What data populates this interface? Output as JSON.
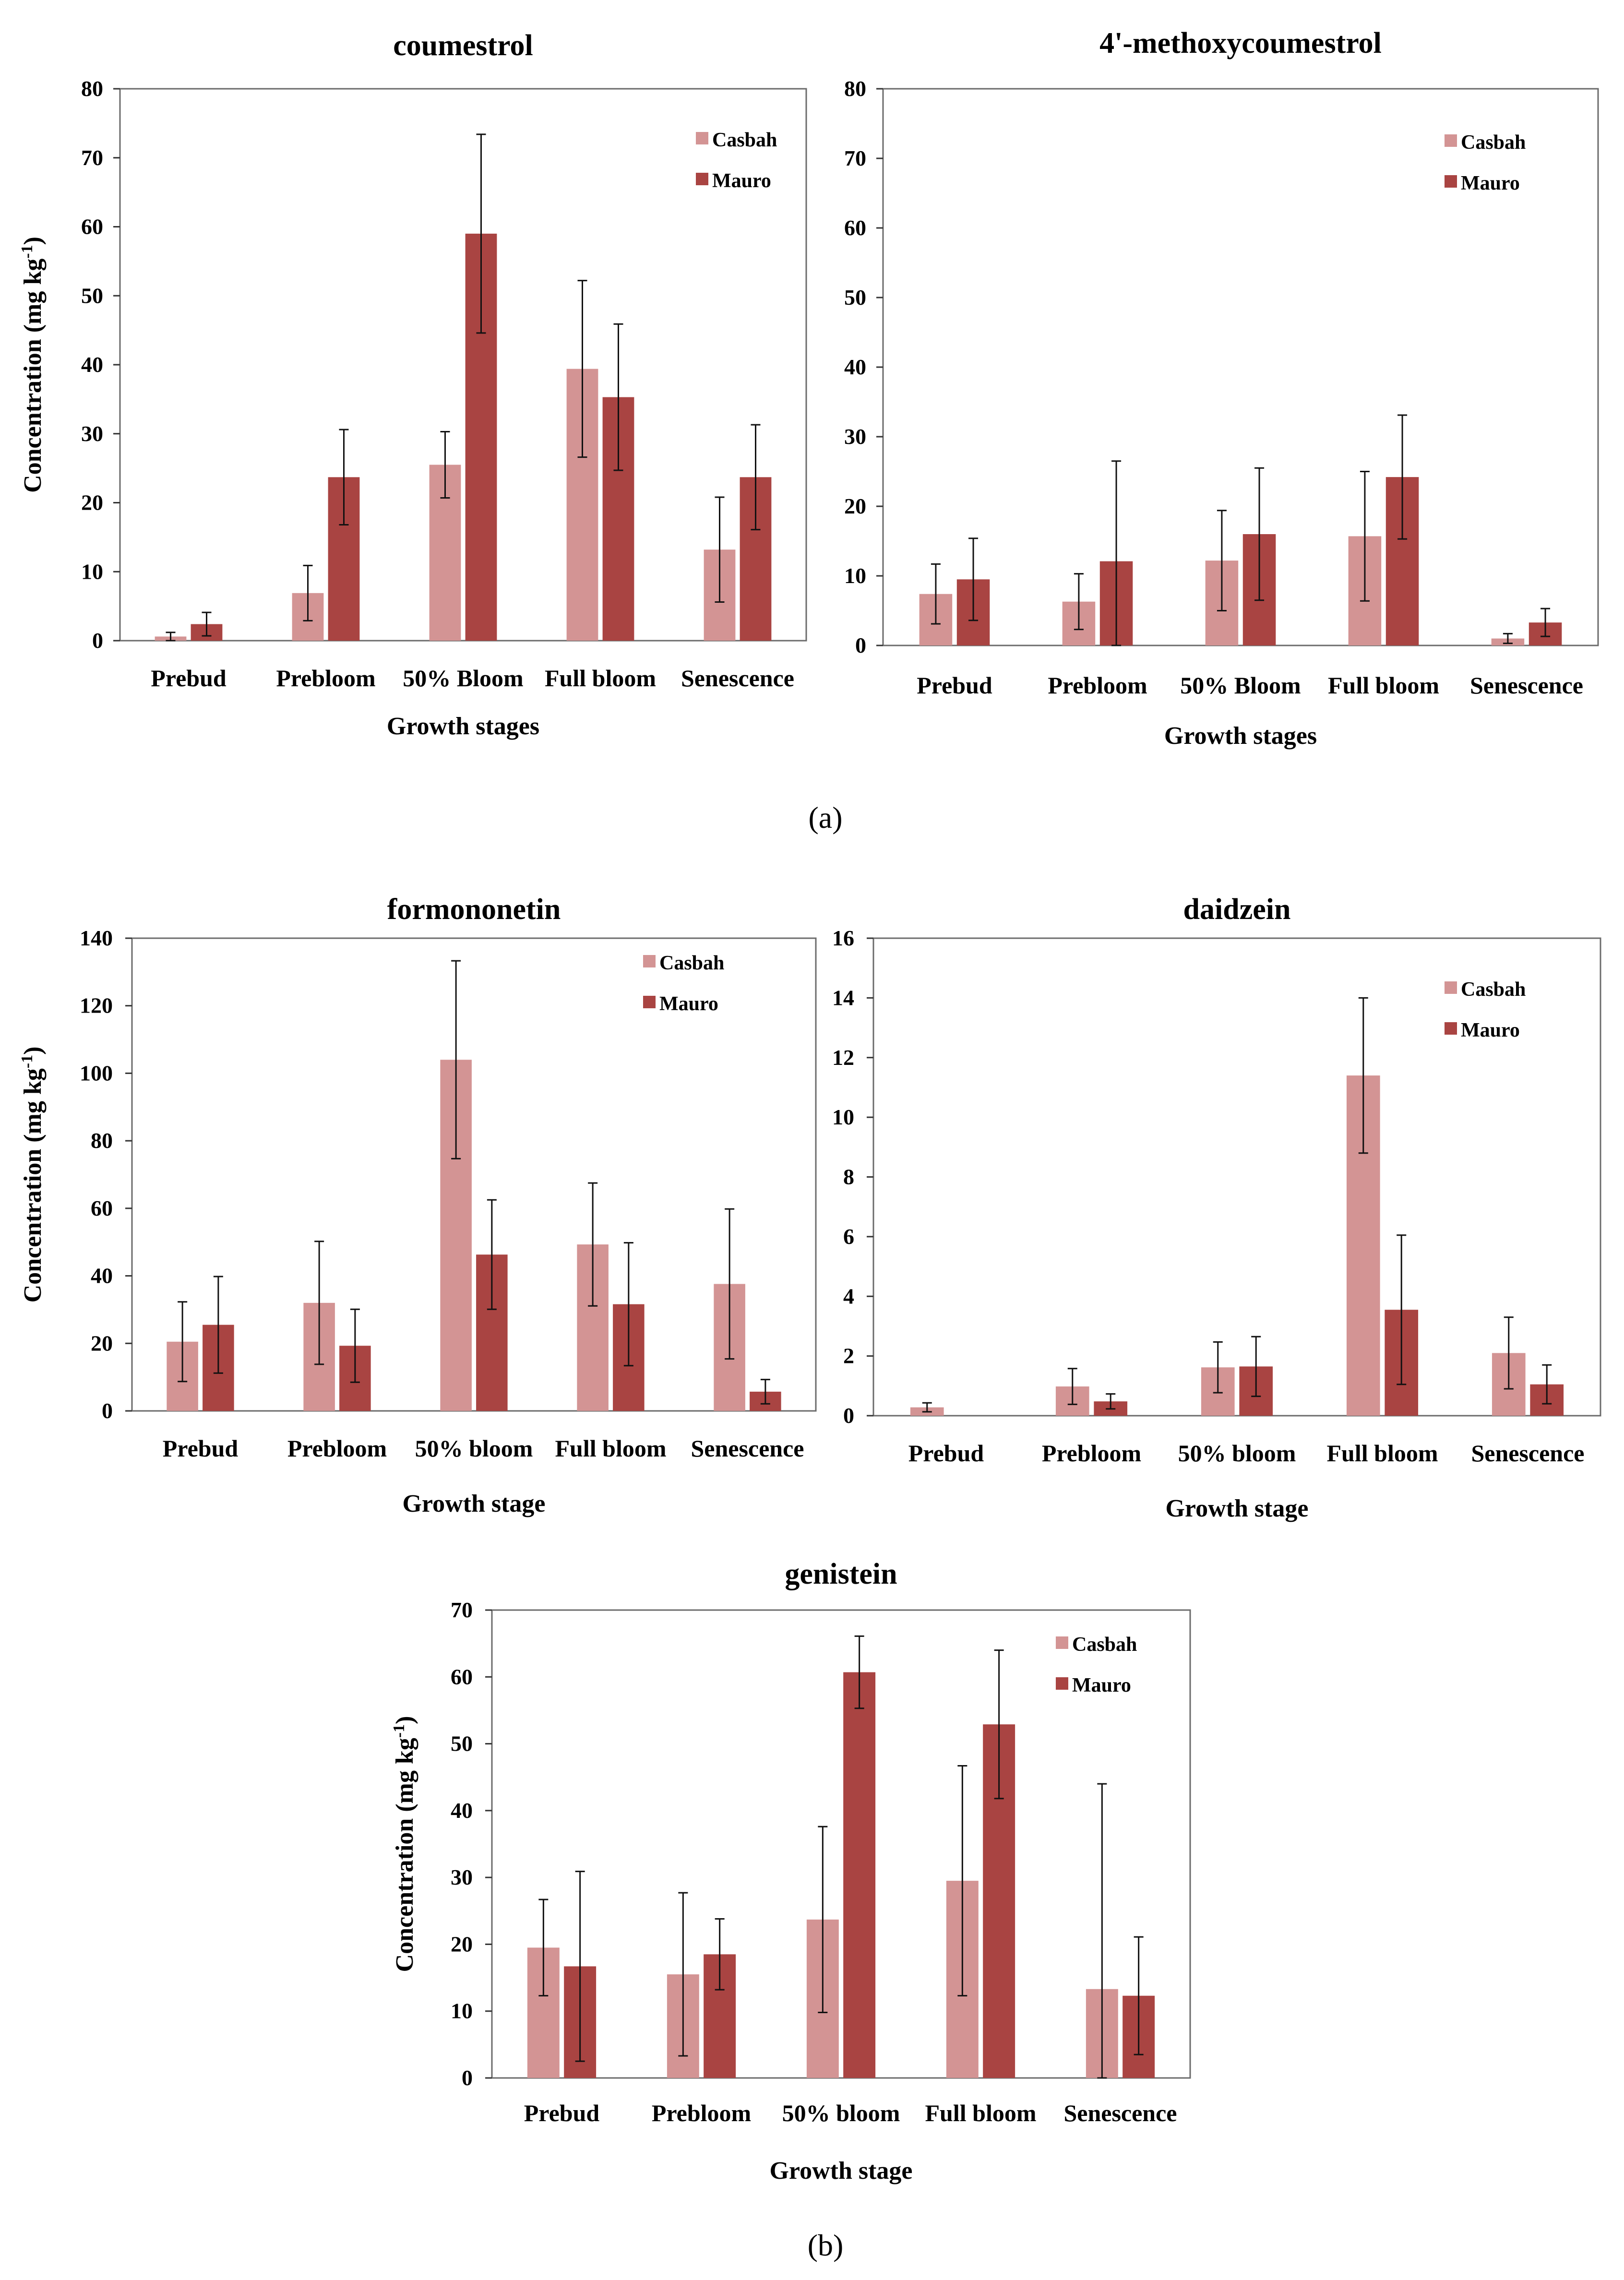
{
  "panel_labels": {
    "a": "(a)",
    "b": "(b)"
  },
  "chart_data": [
    {
      "id": "coumestrol",
      "type": "bar",
      "title": "coumestrol",
      "xlabel": "Growth stages",
      "ylabel": "Concentration (mg kg",
      "ylabel_sup": "-1",
      "ylabel_close": ")",
      "ylim": [
        0,
        80
      ],
      "yticks": [
        0,
        10,
        20,
        30,
        40,
        50,
        60,
        70,
        80
      ],
      "legend_position": "top-right",
      "categories": [
        "Prebud",
        "Prebloom",
        "50% Bloom",
        "Full bloom",
        "Senescence"
      ],
      "series": [
        {
          "name": "Casbah",
          "color": "#d39494",
          "values": [
            0.6,
            6.9,
            25.5,
            39.4,
            13.2
          ],
          "errors": [
            0.6,
            4.0,
            4.8,
            12.8,
            7.6
          ]
        },
        {
          "name": "Mauro",
          "color": "#a94442",
          "values": [
            2.4,
            23.7,
            59.0,
            35.3,
            23.7
          ],
          "errors": [
            1.7,
            6.9,
            14.4,
            10.6,
            7.6
          ]
        }
      ]
    },
    {
      "id": "methoxycoumestrol",
      "type": "bar",
      "title": "4'-methoxycoumestrol",
      "xlabel": "Growth stages",
      "ylabel": "",
      "ylim": [
        0,
        80
      ],
      "yticks": [
        0,
        10,
        20,
        30,
        40,
        50,
        60,
        70,
        80
      ],
      "legend_position": "top-right",
      "categories": [
        "Prebud",
        "Prebloom",
        "50% Bloom",
        "Full bloom",
        "Senescence"
      ],
      "series": [
        {
          "name": "Casbah",
          "color": "#d39494",
          "values": [
            7.4,
            6.3,
            12.2,
            15.7,
            1.0
          ],
          "errors": [
            4.3,
            4.0,
            7.2,
            9.3,
            0.7
          ]
        },
        {
          "name": "Mauro",
          "color": "#a94442",
          "values": [
            9.5,
            12.1,
            16.0,
            24.2,
            3.3
          ],
          "errors": [
            5.9,
            14.4,
            9.5,
            8.9,
            2.0
          ]
        }
      ]
    },
    {
      "id": "formononetin",
      "type": "bar",
      "title": "formononetin",
      "xlabel": "Growth stage",
      "ylabel": "Concentration (mg kg",
      "ylabel_sup": "-1",
      "ylabel_close": ")",
      "ylim": [
        0,
        140
      ],
      "yticks": [
        0,
        20,
        40,
        60,
        80,
        100,
        120,
        140
      ],
      "legend_position": "top-right",
      "categories": [
        "Prebud",
        "Prebloom",
        "50% bloom",
        "Full bloom",
        "Senescence"
      ],
      "series": [
        {
          "name": "Casbah",
          "color": "#d39494",
          "values": [
            20.5,
            32.0,
            104.0,
            49.3,
            37.6
          ],
          "errors": [
            11.8,
            18.2,
            29.3,
            18.2,
            22.2
          ]
        },
        {
          "name": "Mauro",
          "color": "#a94442",
          "values": [
            25.5,
            19.3,
            46.3,
            31.6,
            5.7
          ],
          "errors": [
            14.3,
            10.8,
            16.2,
            18.2,
            3.6
          ]
        }
      ]
    },
    {
      "id": "daidzein",
      "type": "bar",
      "title": "daidzein",
      "xlabel": "Growth stage",
      "ylabel": "",
      "ylim": [
        0,
        16
      ],
      "yticks": [
        0,
        2,
        4,
        6,
        8,
        10,
        12,
        14,
        16
      ],
      "legend_position": "top-right",
      "categories": [
        "Prebud",
        "Prebloom",
        "50% bloom",
        "Full bloom",
        "Senescence"
      ],
      "series": [
        {
          "name": "Casbah",
          "color": "#d39494",
          "values": [
            0.28,
            0.98,
            1.62,
            11.4,
            2.1
          ],
          "errors": [
            0.15,
            0.6,
            0.85,
            2.6,
            1.2
          ]
        },
        {
          "name": "Mauro",
          "color": "#a94442",
          "values": [
            0.0,
            0.48,
            1.65,
            3.55,
            1.05
          ],
          "errors": [
            0.0,
            0.25,
            1.0,
            2.5,
            0.65
          ]
        }
      ]
    },
    {
      "id": "genistein",
      "type": "bar",
      "title": "genistein",
      "xlabel": "Growth stage",
      "ylabel": "Concentration (mg kg",
      "ylabel_sup": "-1",
      "ylabel_close": ")",
      "ylim": [
        0,
        70
      ],
      "yticks": [
        0,
        10,
        20,
        30,
        40,
        50,
        60,
        70
      ],
      "legend_position": "top-right",
      "categories": [
        "Prebud",
        "Prebloom",
        "50% bloom",
        "Full bloom",
        "Senescence"
      ],
      "series": [
        {
          "name": "Casbah",
          "color": "#d39494",
          "values": [
            19.5,
            15.5,
            23.7,
            29.5,
            13.3
          ],
          "errors": [
            7.2,
            12.2,
            13.9,
            17.2,
            30.7
          ]
        },
        {
          "name": "Mauro",
          "color": "#a94442",
          "values": [
            16.7,
            18.5,
            60.7,
            52.9,
            12.3
          ],
          "errors": [
            14.2,
            5.3,
            5.4,
            11.1,
            8.8
          ]
        }
      ]
    }
  ]
}
